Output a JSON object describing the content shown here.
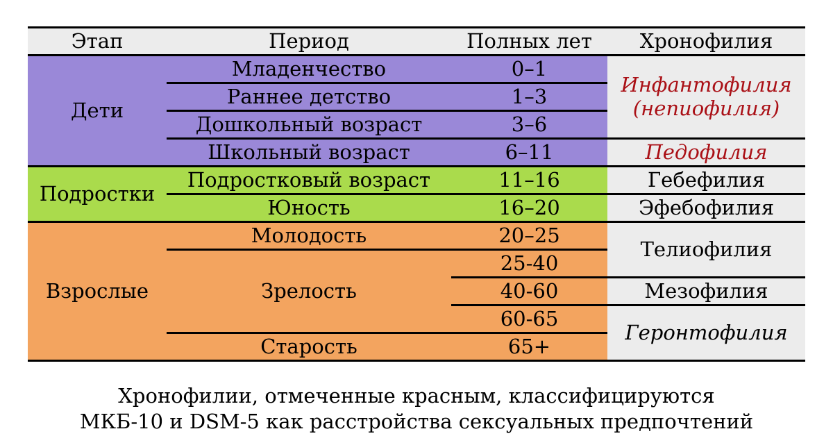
{
  "chart_data": {
    "type": "table",
    "columns": [
      "Этап",
      "Период",
      "Полных лет",
      "Хронофилия"
    ],
    "stages": [
      {
        "label": "Дети",
        "span_rows": 4
      },
      {
        "label": "Подростки",
        "span_rows": 2
      },
      {
        "label": "Взрослые",
        "span_rows": 5
      }
    ],
    "rows": [
      {
        "stage": "Дети",
        "period": "Младенчество",
        "years": "0–1",
        "chronophilia": "Инфантофилия (непиофилия)"
      },
      {
        "stage": "Дети",
        "period": "Раннее детство",
        "years": "1–3",
        "chronophilia": "Инфантофилия (непиофилия)"
      },
      {
        "stage": "Дети",
        "period": "Дошкольный возраст",
        "years": "3–6",
        "chronophilia": "Инфантофилия (непиофилия)"
      },
      {
        "stage": "Дети",
        "period": "Школьный возраст",
        "years": "6–11",
        "chronophilia": "Педофилия"
      },
      {
        "stage": "Подростки",
        "period": "Подростковый возраст",
        "years": "11–16",
        "chronophilia": "Гебефилия"
      },
      {
        "stage": "Подростки",
        "period": "Юность",
        "years": "16–20",
        "chronophilia": "Эфебофилия"
      },
      {
        "stage": "Взрослые",
        "period": "Молодость",
        "years": "20–25",
        "chronophilia": "Телиофилия"
      },
      {
        "stage": "Взрослые",
        "period": "Зрелость",
        "years": "25-40",
        "chronophilia": "Телиофилия"
      },
      {
        "stage": "Взрослые",
        "period": "Зрелость",
        "years": "40-60",
        "chronophilia": "Мезофилия"
      },
      {
        "stage": "Взрослые",
        "period": "Зрелость",
        "years": "60-65",
        "chronophilia": "Геронтофилия"
      },
      {
        "stage": "Взрослые",
        "period": "Старость",
        "years": "65+",
        "chronophilia": "Геронтофилия"
      }
    ],
    "red_flagged": [
      "Инфантофилия (непиофилия)",
      "Педофилия"
    ]
  },
  "caption": {
    "line1": "Хронофилии, отмеченные красным, классифицируются",
    "line2": "МКБ-10 и DSM-5 как расстройства сексуальных предпочтений"
  },
  "colors": {
    "children-bg": "#9a88d8",
    "adolescents-bg": "#aadb4c",
    "adults-bg": "#f3a45f",
    "header-bg": "#ececec",
    "chronophilia-bg": "#ececec",
    "flagged-red": "#aa1016",
    "border": "#000000"
  }
}
